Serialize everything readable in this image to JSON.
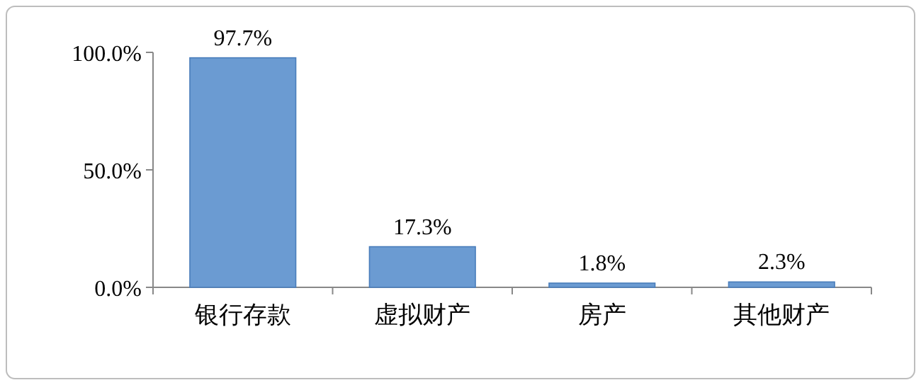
{
  "chart_data": {
    "type": "bar",
    "categories": [
      "银行存款",
      "虚拟财产",
      "房产",
      "其他财产"
    ],
    "values": [
      97.7,
      17.3,
      1.8,
      2.3
    ],
    "value_labels": [
      "97.7%",
      "17.3%",
      "1.8%",
      "2.3%"
    ],
    "color": "#6b9bd2",
    "ylim": [
      0,
      100
    ],
    "yticks": [
      {
        "value": 0,
        "label": "0.0%"
      },
      {
        "value": 50,
        "label": "50.0%"
      },
      {
        "value": 100,
        "label": "100.0%"
      }
    ]
  }
}
